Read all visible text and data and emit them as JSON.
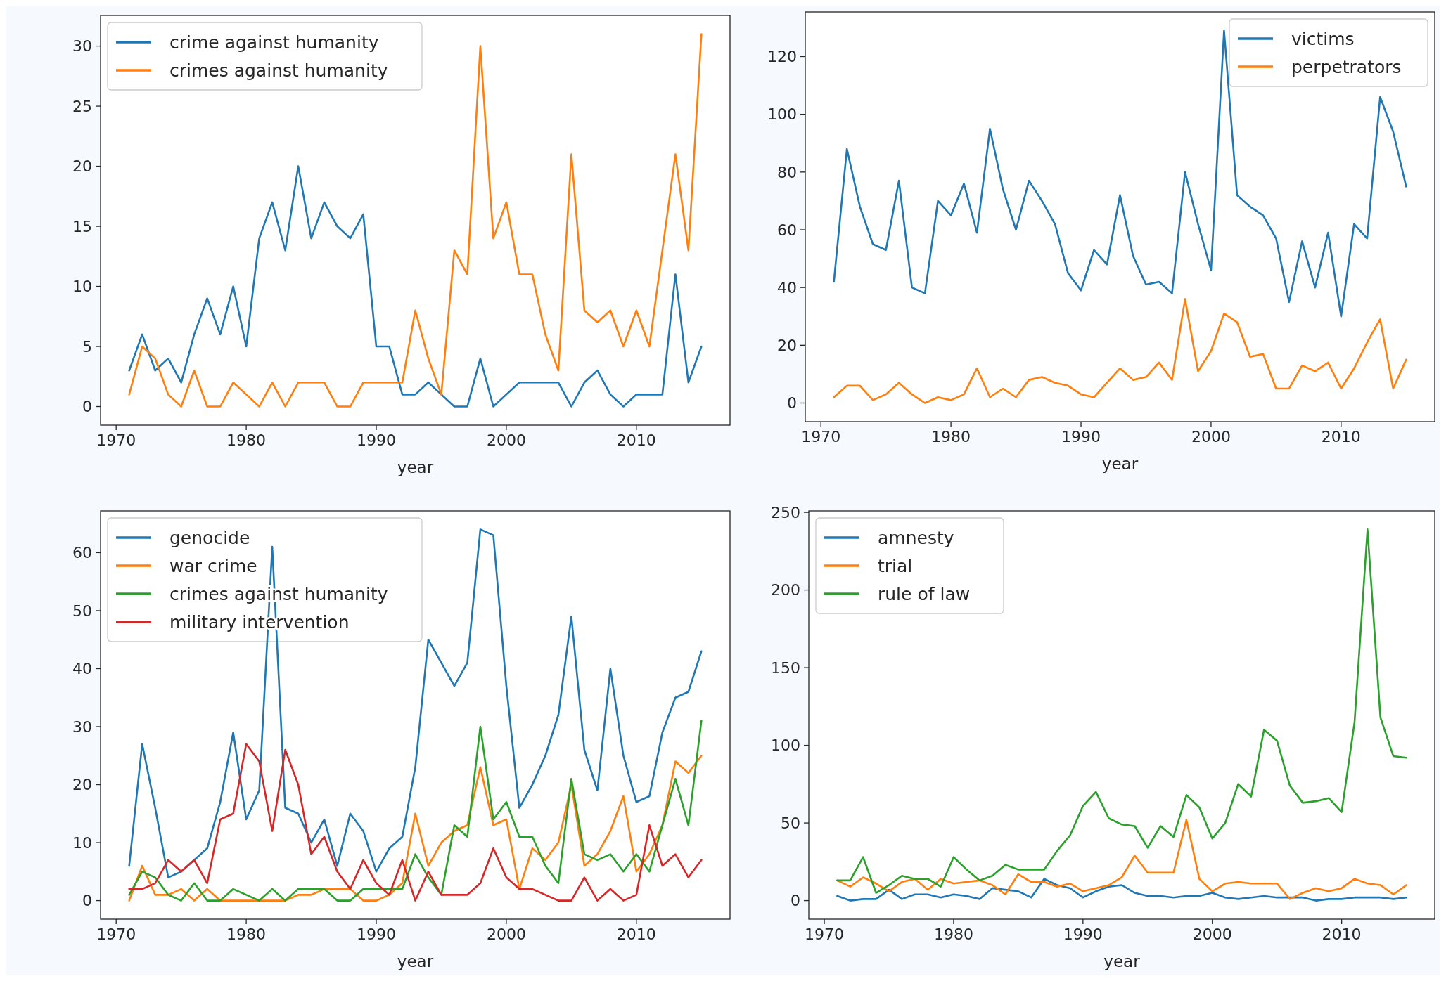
{
  "chart_data": [
    {
      "type": "line",
      "xlabel": "year",
      "x": [
        1971,
        1972,
        1973,
        1974,
        1975,
        1976,
        1977,
        1978,
        1979,
        1980,
        1981,
        1982,
        1983,
        1984,
        1985,
        1986,
        1987,
        1988,
        1989,
        1990,
        1991,
        1992,
        1993,
        1994,
        1995,
        1996,
        1997,
        1998,
        1999,
        2000,
        2001,
        2002,
        2003,
        2004,
        2005,
        2006,
        2007,
        2008,
        2009,
        2010,
        2011,
        2012,
        2013,
        2014,
        2015
      ],
      "xlim": [
        1968.8,
        2017.2
      ],
      "xticks": [
        1970,
        1980,
        1990,
        2000,
        2010
      ],
      "ylim": [
        -1.55,
        32.55
      ],
      "yticks": [
        0,
        5,
        10,
        15,
        20,
        25,
        30
      ],
      "legend": "top left",
      "series": [
        {
          "name": "crime against humanity",
          "color": "#1f77b4",
          "values": [
            3,
            6,
            3,
            4,
            2,
            6,
            9,
            6,
            10,
            5,
            14,
            17,
            13,
            20,
            14,
            17,
            15,
            14,
            16,
            5,
            5,
            1,
            1,
            2,
            1,
            0,
            0,
            4,
            0,
            1,
            2,
            2,
            2,
            2,
            0,
            2,
            3,
            1,
            0,
            1,
            1,
            1,
            11,
            2,
            5
          ]
        },
        {
          "name": "crimes against humanity",
          "color": "#ff7f0e",
          "values": [
            1,
            5,
            4,
            1,
            0,
            3,
            0,
            0,
            2,
            1,
            0,
            2,
            0,
            2,
            2,
            2,
            0,
            0,
            2,
            2,
            2,
            2,
            8,
            4,
            1,
            13,
            11,
            30,
            14,
            17,
            11,
            11,
            6,
            3,
            21,
            8,
            7,
            8,
            5,
            8,
            5,
            13,
            21,
            13,
            31
          ]
        }
      ]
    },
    {
      "type": "line",
      "xlabel": "year",
      "x": [
        1971,
        1972,
        1973,
        1974,
        1975,
        1976,
        1977,
        1978,
        1979,
        1980,
        1981,
        1982,
        1983,
        1984,
        1985,
        1986,
        1987,
        1988,
        1989,
        1990,
        1991,
        1992,
        1993,
        1994,
        1995,
        1996,
        1997,
        1998,
        1999,
        2000,
        2001,
        2002,
        2003,
        2004,
        2005,
        2006,
        2007,
        2008,
        2009,
        2010,
        2011,
        2012,
        2013,
        2014,
        2015
      ],
      "xlim": [
        1968.8,
        2017.2
      ],
      "xticks": [
        1970,
        1980,
        1990,
        2000,
        2010
      ],
      "ylim": [
        -6.45,
        135.45
      ],
      "yticks": [
        0,
        20,
        40,
        60,
        80,
        100,
        120
      ],
      "legend": "top right",
      "series": [
        {
          "name": "victims",
          "color": "#1f77b4",
          "values": [
            42,
            88,
            68,
            55,
            53,
            77,
            40,
            38,
            70,
            65,
            76,
            59,
            95,
            74,
            60,
            77,
            70,
            62,
            45,
            39,
            53,
            48,
            72,
            51,
            41,
            42,
            38,
            80,
            62,
            46,
            129,
            72,
            68,
            65,
            57,
            35,
            56,
            40,
            59,
            30,
            62,
            57,
            106,
            94,
            75
          ]
        },
        {
          "name": "perpetrators",
          "color": "#ff7f0e",
          "values": [
            2,
            6,
            6,
            1,
            3,
            7,
            3,
            0,
            2,
            1,
            3,
            12,
            2,
            5,
            2,
            8,
            9,
            7,
            6,
            3,
            2,
            7,
            12,
            8,
            9,
            14,
            8,
            36,
            11,
            18,
            31,
            28,
            16,
            17,
            5,
            5,
            13,
            11,
            14,
            5,
            12,
            21,
            29,
            5,
            15
          ]
        }
      ]
    },
    {
      "type": "line",
      "xlabel": "year",
      "x": [
        1971,
        1972,
        1973,
        1974,
        1975,
        1976,
        1977,
        1978,
        1979,
        1980,
        1981,
        1982,
        1983,
        1984,
        1985,
        1986,
        1987,
        1988,
        1989,
        1990,
        1991,
        1992,
        1993,
        1994,
        1995,
        1996,
        1997,
        1998,
        1999,
        2000,
        2001,
        2002,
        2003,
        2004,
        2005,
        2006,
        2007,
        2008,
        2009,
        2010,
        2011,
        2012,
        2013,
        2014,
        2015
      ],
      "xlim": [
        1968.8,
        2017.2
      ],
      "xticks": [
        1970,
        1980,
        1990,
        2000,
        2010
      ],
      "ylim": [
        -3.2,
        67.2
      ],
      "yticks": [
        0,
        10,
        20,
        30,
        40,
        50,
        60
      ],
      "legend": "top left",
      "series": [
        {
          "name": "genocide",
          "color": "#1f77b4",
          "values": [
            6,
            27,
            16,
            4,
            5,
            7,
            9,
            17,
            29,
            14,
            19,
            61,
            16,
            15,
            10,
            14,
            6,
            15,
            12,
            5,
            9,
            11,
            23,
            45,
            41,
            37,
            41,
            64,
            63,
            37,
            16,
            20,
            25,
            32,
            49,
            26,
            19,
            40,
            25,
            17,
            18,
            29,
            35,
            36,
            43
          ]
        },
        {
          "name": "war crime",
          "color": "#ff7f0e",
          "values": [
            0,
            6,
            1,
            1,
            2,
            0,
            2,
            0,
            0,
            0,
            0,
            0,
            0,
            1,
            1,
            2,
            2,
            2,
            0,
            0,
            1,
            3,
            15,
            6,
            10,
            12,
            13,
            23,
            13,
            14,
            2,
            9,
            7,
            10,
            20,
            6,
            8,
            12,
            18,
            5,
            8,
            13,
            24,
            22,
            25
          ]
        },
        {
          "name": "crimes against humanity",
          "color": "#2ca02c",
          "values": [
            1,
            5,
            4,
            1,
            0,
            3,
            0,
            0,
            2,
            1,
            0,
            2,
            0,
            2,
            2,
            2,
            0,
            0,
            2,
            2,
            2,
            2,
            8,
            4,
            1,
            13,
            11,
            30,
            14,
            17,
            11,
            11,
            6,
            3,
            21,
            8,
            7,
            8,
            5,
            8,
            5,
            13,
            21,
            13,
            31
          ]
        },
        {
          "name": "military intervention",
          "color": "#d62728",
          "values": [
            2,
            2,
            3,
            7,
            5,
            7,
            3,
            14,
            15,
            27,
            24,
            12,
            26,
            20,
            8,
            11,
            5,
            2,
            7,
            3,
            1,
            7,
            0,
            5,
            1,
            1,
            1,
            3,
            9,
            4,
            2,
            2,
            1,
            0,
            0,
            4,
            0,
            2,
            0,
            1,
            13,
            6,
            8,
            4,
            7
          ]
        }
      ]
    },
    {
      "type": "line",
      "xlabel": "year",
      "x": [
        1971,
        1972,
        1973,
        1974,
        1975,
        1976,
        1977,
        1978,
        1979,
        1980,
        1981,
        1982,
        1983,
        1984,
        1985,
        1986,
        1987,
        1988,
        1989,
        1990,
        1991,
        1992,
        1993,
        1994,
        1995,
        1996,
        1997,
        1998,
        1999,
        2000,
        2001,
        2002,
        2003,
        2004,
        2005,
        2006,
        2007,
        2008,
        2009,
        2010,
        2011,
        2012,
        2013,
        2014,
        2015
      ],
      "xlim": [
        1968.8,
        2017.2
      ],
      "xticks": [
        1970,
        1980,
        1990,
        2000,
        2010
      ],
      "ylim": [
        -11.95,
        250.95
      ],
      "yticks": [
        0,
        50,
        100,
        150,
        200,
        250
      ],
      "legend": "top left",
      "series": [
        {
          "name": "amnesty",
          "color": "#1f77b4",
          "values": [
            3,
            0,
            1,
            1,
            7,
            1,
            4,
            4,
            2,
            4,
            3,
            1,
            8,
            7,
            6,
            2,
            14,
            10,
            8,
            2,
            6,
            9,
            10,
            5,
            3,
            3,
            2,
            3,
            3,
            5,
            2,
            1,
            2,
            3,
            2,
            2,
            2,
            0,
            1,
            1,
            2,
            2,
            2,
            1,
            2
          ]
        },
        {
          "name": "trial",
          "color": "#ff7f0e",
          "values": [
            13,
            9,
            15,
            11,
            6,
            12,
            14,
            7,
            14,
            11,
            12,
            13,
            10,
            4,
            17,
            12,
            12,
            9,
            11,
            6,
            8,
            10,
            15,
            29,
            18,
            18,
            18,
            52,
            14,
            6,
            11,
            12,
            11,
            11,
            11,
            1,
            5,
            8,
            6,
            8,
            14,
            11,
            10,
            4,
            10
          ]
        },
        {
          "name": "rule of law",
          "color": "#2ca02c",
          "values": [
            13,
            13,
            28,
            5,
            10,
            16,
            14,
            14,
            9,
            28,
            20,
            13,
            16,
            23,
            20,
            20,
            20,
            32,
            42,
            61,
            70,
            53,
            49,
            48,
            34,
            48,
            41,
            68,
            60,
            40,
            50,
            75,
            67,
            110,
            103,
            74,
            63,
            64,
            66,
            57,
            115,
            239,
            118,
            93,
            92
          ]
        }
      ]
    }
  ]
}
